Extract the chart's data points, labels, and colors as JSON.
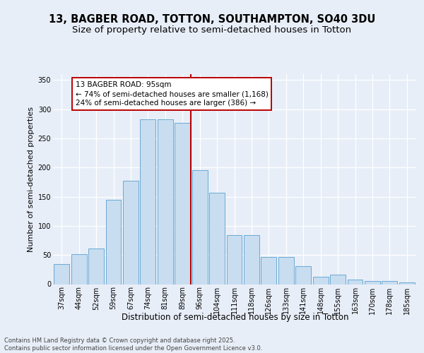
{
  "title1": "13, BAGBER ROAD, TOTTON, SOUTHAMPTON, SO40 3DU",
  "title2": "Size of property relative to semi-detached houses in Totton",
  "xlabel": "Distribution of semi-detached houses by size in Totton",
  "ylabel": "Number of semi-detached properties",
  "categories": [
    "37sqm",
    "44sqm",
    "52sqm",
    "59sqm",
    "67sqm",
    "74sqm",
    "81sqm",
    "89sqm",
    "96sqm",
    "104sqm",
    "111sqm",
    "118sqm",
    "126sqm",
    "133sqm",
    "141sqm",
    "148sqm",
    "155sqm",
    "163sqm",
    "170sqm",
    "178sqm",
    "185sqm"
  ],
  "values": [
    35,
    51,
    61,
    145,
    177,
    283,
    283,
    277,
    196,
    157,
    84,
    84,
    46,
    46,
    31,
    13,
    16,
    8,
    5,
    6,
    3
  ],
  "bar_color": "#c8ddf0",
  "bar_edge_color": "#6aaad4",
  "vline_color": "#bb0000",
  "vline_pos": 7.5,
  "annotation_text": "13 BAGBER ROAD: 95sqm\n← 74% of semi-detached houses are smaller (1,168)\n24% of semi-detached houses are larger (386) →",
  "footer": "Contains HM Land Registry data © Crown copyright and database right 2025.\nContains public sector information licensed under the Open Government Licence v3.0.",
  "ylim": [
    0,
    360
  ],
  "yticks": [
    0,
    50,
    100,
    150,
    200,
    250,
    300,
    350
  ],
  "bg_color": "#e8eef8",
  "title1_fontsize": 10.5,
  "title2_fontsize": 9.5,
  "xlabel_fontsize": 8.5,
  "ylabel_fontsize": 8,
  "tick_fontsize": 7,
  "annotation_fontsize": 7.5,
  "footer_fontsize": 6
}
